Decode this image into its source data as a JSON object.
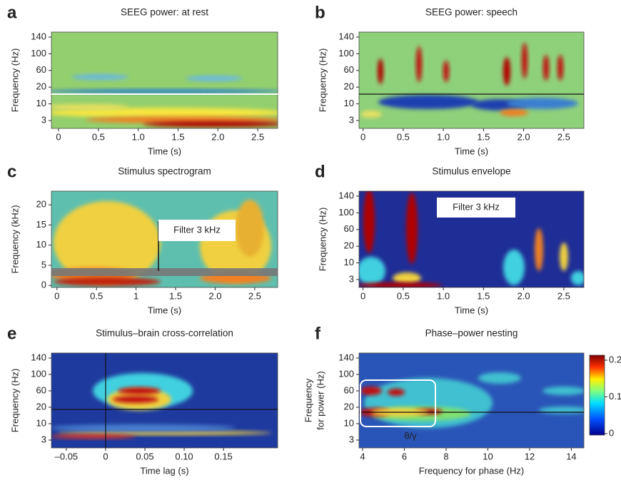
{
  "chart_data": [
    {
      "type": "heatmap",
      "panel": "a",
      "title": "SEEG power: at rest",
      "xlabel": "Time (s)",
      "ylabel": "Frequency (Hz)",
      "xlim": [
        -0.09,
        2.75
      ],
      "xticks": [
        0,
        0.5,
        {
          "value": 1,
          "label": "1.0"
        },
        1.5,
        {
          "value": 2,
          "label": "2.0"
        },
        2.5
      ],
      "yticks": [
        3,
        10,
        20,
        60,
        100,
        140
      ]
    },
    {
      "type": "heatmap",
      "panel": "b",
      "title": "SEEG power: speech",
      "xlabel": "Time (s)",
      "ylabel": "Frequency (Hz)",
      "xlim": [
        -0.05,
        2.75
      ],
      "xticks": [
        0,
        0.5,
        {
          "value": 1,
          "label": "1.0"
        },
        1.5,
        {
          "value": 2,
          "label": "2.0"
        },
        2.5
      ],
      "yticks": [
        3,
        10,
        20,
        60,
        100,
        140
      ]
    },
    {
      "type": "heatmap",
      "panel": "c",
      "title": "Stimulus spectrogram",
      "xlabel": "Time (s)",
      "ylabel": "Frequency (kHz)",
      "xlim": [
        -0.07,
        2.79
      ],
      "xticks": [
        0,
        0.5,
        1,
        1.5,
        {
          "value": 2,
          "label": "2.0"
        },
        2.5
      ],
      "ylim": [
        -0.5,
        23.4
      ],
      "yticks": [
        0,
        5,
        10,
        15,
        20
      ],
      "annotation": "Filter 3 kHz"
    },
    {
      "type": "heatmap",
      "panel": "d",
      "title": "Stimulus envelope",
      "xlabel": "Time (s)",
      "ylabel": "Frequency (Hz)",
      "xlim": [
        -0.05,
        2.75
      ],
      "xticks": [
        0,
        0.5,
        {
          "value": 1,
          "label": "1.0"
        },
        1.5,
        {
          "value": 2,
          "label": "2.0"
        },
        2.5
      ],
      "yticks": [
        3,
        10,
        20,
        60,
        100,
        140
      ],
      "annotation": "Filter 3 kHz"
    },
    {
      "type": "heatmap",
      "panel": "e",
      "title": "Stimulus–brain cross-correlation",
      "xlabel": "Time lag (s)",
      "ylabel": "Frequency (Hz)",
      "xlim": [
        -0.069,
        0.219
      ],
      "xticks": [
        {
          "value": -0.05,
          "label": "–0.05"
        },
        0,
        0.05,
        {
          "value": 0.1,
          "label": "0.10"
        },
        0.15
      ],
      "yticks": [
        3,
        10,
        20,
        60,
        100,
        140
      ]
    },
    {
      "type": "heatmap",
      "panel": "f",
      "title": "Phase–power nesting",
      "xlabel": "Frequency for phase (Hz)",
      "ylabel": [
        "Frequency",
        "for power (Hz)"
      ],
      "xlim": [
        3.83,
        14.6
      ],
      "xticks": [
        4,
        6,
        8,
        10,
        12,
        14
      ],
      "yticks": [
        3,
        10,
        20,
        60,
        100,
        140
      ],
      "annotation": "θ/γ",
      "colorbar": {
        "ylim": [
          0,
          0.2
        ],
        "yticks": [
          0,
          0.1,
          0.2
        ]
      }
    }
  ]
}
